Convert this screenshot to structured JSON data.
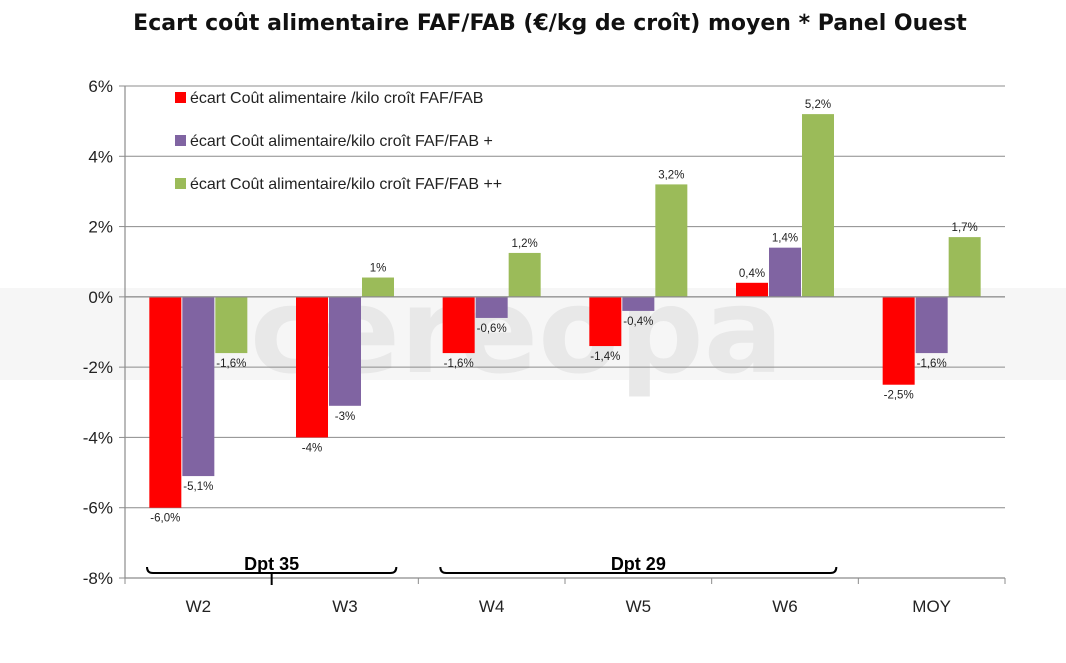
{
  "chart_data": {
    "type": "bar",
    "title": "Ecart coût alimentaire FAF/FAB (€/kg de croît)  moyen * Panel Ouest",
    "categories": [
      "W2",
      "W3",
      "W4",
      "W5",
      "W6",
      "MOY"
    ],
    "series": [
      {
        "name": "écart Coût alimentaire /kilo croît FAF/FAB",
        "color": "#ff0000",
        "values": [
          -6.0,
          -4.0,
          -1.6,
          -1.4,
          0.4,
          -2.5
        ],
        "labels": [
          "-6,0%",
          "-4%",
          "-1,6%",
          "-1,4%",
          "0,4%",
          "-2,5%"
        ]
      },
      {
        "name": "écart Coût alimentaire/kilo croît FAF/FAB +",
        "color": "#8064a2",
        "values": [
          -5.1,
          -3.1,
          -0.6,
          -0.4,
          1.4,
          -1.6
        ],
        "labels": [
          "-5,1%",
          "-3%",
          "-0,6%",
          "-0,4%",
          "1,4%",
          "-1,6%"
        ]
      },
      {
        "name": "écart Coût alimentaire/kilo croît FAF/FAB ++",
        "color": "#9bbb59",
        "values": [
          -1.6,
          0.55,
          1.25,
          3.2,
          5.2,
          1.7
        ],
        "labels": [
          "-1,6%",
          "1%",
          "1,2%",
          "3,2%",
          "5,2%",
          "1,7%"
        ]
      }
    ],
    "yticks": [
      "6%",
      "4%",
      "2%",
      "0%",
      "-2%",
      "-4%",
      "-6%",
      "-8%"
    ],
    "ylim": [
      -8,
      6
    ],
    "grid": true,
    "legend_position": "top-left",
    "groups": [
      {
        "label": "Dpt 35",
        "categories": [
          "W2",
          "W3"
        ]
      },
      {
        "label": "Dpt 29",
        "categories": [
          "W4",
          "W5",
          "W6"
        ]
      }
    ]
  },
  "watermark": "cereopa"
}
